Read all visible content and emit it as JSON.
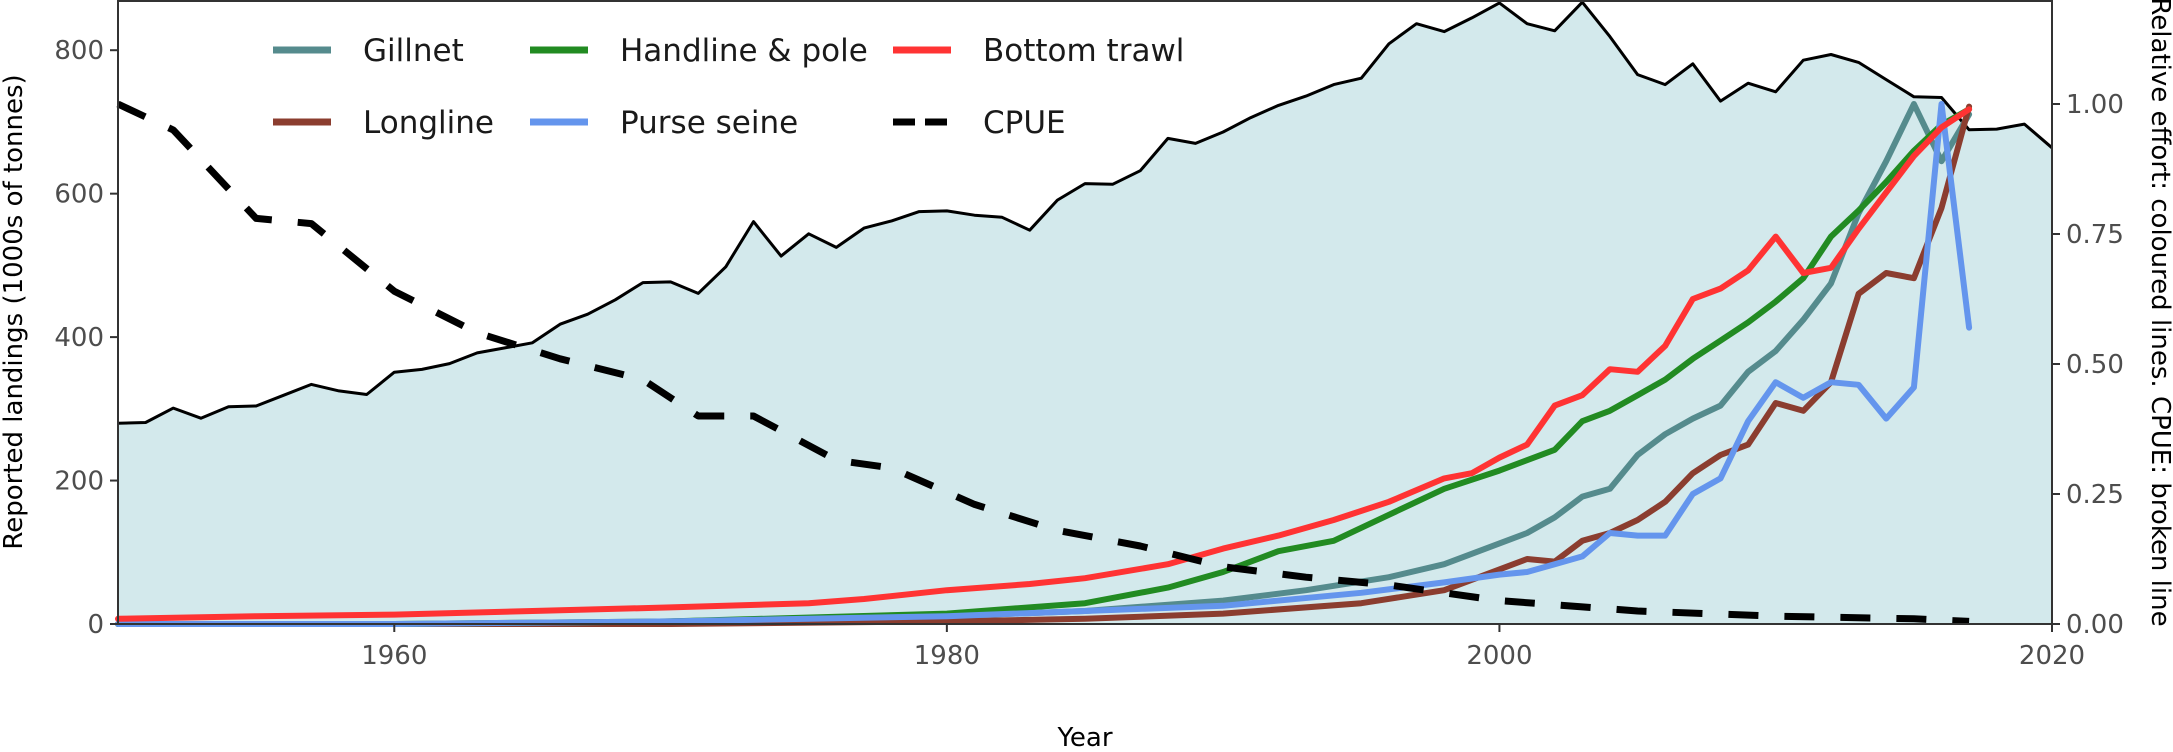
{
  "chart_data": {
    "type": "area",
    "x_axis": {
      "label": "Year",
      "lim": [
        1950,
        2020
      ],
      "ticks": [
        1960,
        1980,
        2000,
        2020
      ]
    },
    "y_axis_left": {
      "label": "Reported landings (1000s of tonnes)",
      "lim": [
        0,
        870
      ],
      "ticks": [
        0,
        200,
        400,
        600,
        800
      ]
    },
    "y_axis_right": {
      "label": "Relative effort: coloured lines. CPUE: broken line",
      "lim": [
        0,
        1.2
      ],
      "ticks": [
        "0.00",
        "0.25",
        "0.50",
        "0.75",
        "1.00"
      ]
    },
    "grid": false,
    "legend": {
      "position": "top-left inside",
      "columns": 3
    },
    "landings": {
      "name": "Reported landings",
      "fill": "#d3e9ec",
      "line_color": "#000000",
      "x": [
        1950,
        1951,
        1952,
        1953,
        1954,
        1955,
        1956,
        1957,
        1958,
        1959,
        1960,
        1961,
        1962,
        1963,
        1964,
        1965,
        1966,
        1967,
        1968,
        1969,
        1970,
        1971,
        1972,
        1973,
        1974,
        1975,
        1976,
        1977,
        1978,
        1979,
        1980,
        1981,
        1982,
        1983,
        1984,
        1985,
        1986,
        1987,
        1988,
        1989,
        1990,
        1991,
        1992,
        1993,
        1994,
        1995,
        1996,
        1997,
        1998,
        1999,
        2000,
        2001,
        2002,
        2003,
        2004,
        2005,
        2006,
        2007,
        2008,
        2009,
        2010,
        2011,
        2012,
        2013,
        2014,
        2015,
        2016,
        2017,
        2018,
        2019,
        2020
      ],
      "y": [
        280,
        281,
        301,
        287,
        303,
        304,
        319,
        334,
        325,
        320,
        351,
        355,
        363,
        378,
        385,
        392,
        418,
        432,
        452,
        476,
        477,
        461,
        498,
        561,
        513,
        544,
        525,
        552,
        562,
        575,
        576,
        570,
        567,
        549,
        591,
        614,
        613,
        632,
        677,
        670,
        686,
        706,
        723,
        736,
        752,
        761,
        809,
        837,
        826,
        845,
        866,
        837,
        827,
        867,
        819,
        766,
        752,
        781,
        729,
        754,
        742,
        786,
        794,
        783,
        759,
        735,
        734,
        689,
        690,
        697,
        664
      ]
    },
    "series": [
      {
        "name": "Gillnet",
        "axis": "right",
        "color": "#558b8d",
        "dash": "solid",
        "x": [
          1950,
          1955,
          1960,
          1965,
          1970,
          1975,
          1980,
          1985,
          1990,
          1993,
          1996,
          1998,
          2000,
          2001,
          2002,
          2003,
          2004,
          2005,
          2006,
          2007,
          2008,
          2009,
          2010,
          2011,
          2012,
          2013,
          2014,
          2015,
          2016,
          2017
        ],
        "y": [
          0.0,
          0.0,
          0.0,
          0.0,
          0.005,
          0.01,
          0.015,
          0.025,
          0.045,
          0.065,
          0.09,
          0.115,
          0.155,
          0.175,
          0.205,
          0.245,
          0.26,
          0.325,
          0.365,
          0.395,
          0.42,
          0.485,
          0.525,
          0.585,
          0.655,
          0.79,
          0.89,
          1.0,
          0.89,
          0.98
        ]
      },
      {
        "name": "Longline",
        "axis": "right",
        "color": "#8b3d2f",
        "dash": "solid",
        "x": [
          1950,
          1960,
          1970,
          1980,
          1985,
          1990,
          1995,
          1998,
          2000,
          2001,
          2002,
          2003,
          2004,
          2005,
          2006,
          2007,
          2008,
          2009,
          2010,
          2011,
          2012,
          2013,
          2014,
          2015,
          2016,
          2017
        ],
        "y": [
          0.0,
          0.0,
          0.0,
          0.005,
          0.01,
          0.02,
          0.04,
          0.065,
          0.105,
          0.125,
          0.12,
          0.16,
          0.175,
          0.2,
          0.235,
          0.29,
          0.325,
          0.345,
          0.425,
          0.41,
          0.465,
          0.635,
          0.675,
          0.665,
          0.8,
          0.995
        ]
      },
      {
        "name": "Handline & pole",
        "axis": "right",
        "color": "#228b22",
        "dash": "solid",
        "x": [
          1950,
          1960,
          1970,
          1980,
          1985,
          1988,
          1990,
          1992,
          1994,
          1996,
          1998,
          2000,
          2002,
          2003,
          2004,
          2005,
          2006,
          2007,
          2008,
          2009,
          2010,
          2011,
          2012,
          2013,
          2014,
          2015,
          2016,
          2017
        ],
        "y": [
          0.0,
          0.0,
          0.005,
          0.02,
          0.04,
          0.07,
          0.1,
          0.14,
          0.16,
          0.21,
          0.26,
          0.295,
          0.335,
          0.39,
          0.41,
          0.44,
          0.47,
          0.51,
          0.545,
          0.58,
          0.62,
          0.665,
          0.745,
          0.795,
          0.85,
          0.91,
          0.96,
          0.99
        ]
      },
      {
        "name": "Purse seine",
        "axis": "right",
        "color": "#6495ed",
        "dash": "solid",
        "x": [
          1950,
          1960,
          1970,
          1980,
          1990,
          1995,
          1998,
          2000,
          2001,
          2002,
          2003,
          2004,
          2005,
          2006,
          2007,
          2008,
          2009,
          2010,
          2011,
          2012,
          2013,
          2014,
          2015,
          2016,
          2017
        ],
        "y": [
          0.0,
          0.0,
          0.005,
          0.015,
          0.035,
          0.06,
          0.08,
          0.095,
          0.1,
          0.115,
          0.13,
          0.175,
          0.17,
          0.17,
          0.25,
          0.28,
          0.39,
          0.465,
          0.435,
          0.465,
          0.46,
          0.395,
          0.455,
          1.0,
          0.57
        ]
      },
      {
        "name": "Bottom trawl",
        "axis": "right",
        "color": "#ff3333",
        "dash": "solid",
        "x": [
          1950,
          1955,
          1960,
          1965,
          1970,
          1975,
          1977,
          1980,
          1983,
          1985,
          1988,
          1990,
          1992,
          1994,
          1996,
          1998,
          1999,
          2000,
          2001,
          2002,
          2003,
          2004,
          2005,
          2006,
          2007,
          2008,
          2009,
          2010,
          2011,
          2012,
          2013,
          2014,
          2015,
          2016,
          2017
        ],
        "y": [
          0.01,
          0.015,
          0.018,
          0.025,
          0.032,
          0.04,
          0.048,
          0.065,
          0.077,
          0.088,
          0.115,
          0.145,
          0.17,
          0.2,
          0.235,
          0.28,
          0.29,
          0.32,
          0.345,
          0.42,
          0.44,
          0.49,
          0.485,
          0.535,
          0.625,
          0.645,
          0.68,
          0.745,
          0.675,
          0.685,
          0.76,
          0.83,
          0.9,
          0.955,
          0.99
        ]
      },
      {
        "name": "CPUE",
        "axis": "right",
        "color": "#000000",
        "dash": "dashed",
        "x": [
          1950,
          1952,
          1955,
          1957,
          1960,
          1963,
          1966,
          1969,
          1971,
          1973,
          1976,
          1978,
          1981,
          1984,
          1987,
          1990,
          1993,
          1996,
          2000,
          2005,
          2010,
          2015,
          2017
        ],
        "y": [
          1.0,
          0.95,
          0.78,
          0.77,
          0.64,
          0.56,
          0.51,
          0.47,
          0.4,
          0.4,
          0.315,
          0.3,
          0.23,
          0.18,
          0.15,
          0.11,
          0.09,
          0.075,
          0.045,
          0.025,
          0.015,
          0.01,
          0.005
        ]
      }
    ]
  }
}
